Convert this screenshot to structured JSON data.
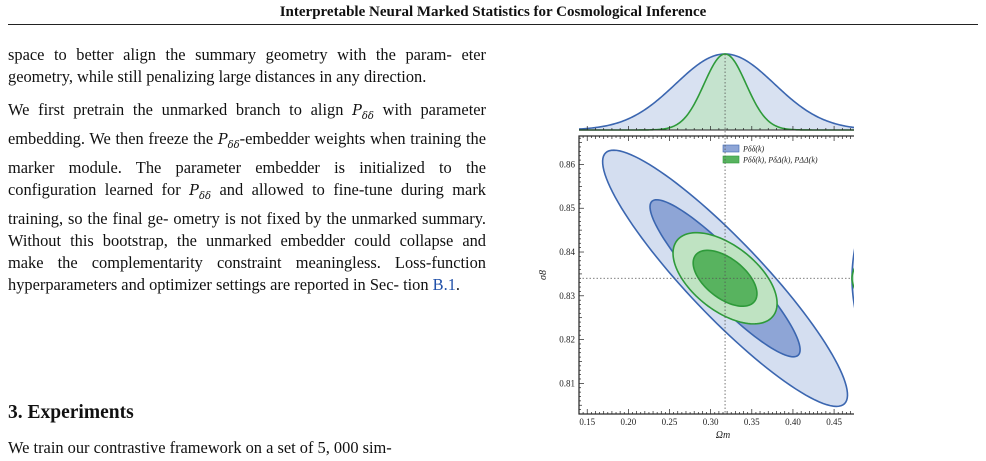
{
  "header": {
    "title": "Interpretable Neural Marked Statistics for Cosmological Inference"
  },
  "body_text": {
    "para1_lines": [
      "space to better align the summary geometry with the param-",
      "eter geometry, while still penalizing large distances in any",
      "direction."
    ],
    "para2": {
      "l1a": "We first pretrain the unmarked branch to align ",
      "l1b": " with",
      "l2a": "parameter embedding. We then freeze the ",
      "l2b": "-embedder",
      "l3": "weights when training the marker module. The parameter",
      "l4": "embedder is initialized to the configuration learned for ",
      "l5": "and allowed to fine-tune during mark training, so the final ge-",
      "l6": "ometry is not fixed by the unmarked summary. Without this",
      "l7": "bootstrap, the unmarked embedder could collapse and make",
      "l8": "the complementarity constraint meaningless. Loss-function",
      "l9": "hyperparameters and optimizer settings are reported in Sec-",
      "l10a": "tion ",
      "l10_link": "B.1",
      "l10b": ".",
      "symbol": "P",
      "symbol_sub": "δδ"
    },
    "section_heading": "3. Experiments",
    "section_para_start": "We train our contrastive framework on a set of 5, 000 sim-"
  },
  "chart_data": {
    "type": "scatter",
    "subtype": "corner-plot-contours",
    "xlabel": "Ω_m",
    "ylabel": "σ_8",
    "xlim": [
      0.14,
      0.49
    ],
    "ylim": [
      0.803,
      0.8665
    ],
    "xticks": [
      0.15,
      0.2,
      0.25,
      0.3,
      0.35,
      0.4,
      0.45
    ],
    "xtick_labels": [
      "0.15",
      "0.20",
      "0.25",
      "0.30",
      "0.35",
      "0.40",
      "0.45"
    ],
    "yticks": [
      0.81,
      0.82,
      0.83,
      0.84,
      0.85,
      0.86
    ],
    "ytick_labels": [
      "0.81",
      "0.82",
      "0.83",
      "0.84",
      "0.85",
      "0.86"
    ],
    "fiducial": {
      "omega_m": 0.3175,
      "sigma_8": 0.834
    },
    "legend_position": "top-right",
    "series": [
      {
        "name": "P_δδ(k)",
        "legend_label": "Pδδ(k)",
        "color": "#3b66b0",
        "fill": "#d4def0",
        "fill_inner": "#8ea5d6",
        "mean": [
          0.3175,
          0.834
        ],
        "sigma": [
          0.06,
          0.0118
        ],
        "rho": -0.91
      },
      {
        "name": "P_δδ(k), P_δΔ(k), P_ΔΔ(k)",
        "legend_label": "Pδδ(k), PδΔ(k), PΔΔ(k)",
        "color": "#2e9a3a",
        "fill": "#bfe3c2",
        "fill_inner": "#58b35f",
        "mean": [
          0.3175,
          0.834
        ],
        "sigma": [
          0.0255,
          0.0042
        ],
        "rho": -0.55
      }
    ]
  }
}
